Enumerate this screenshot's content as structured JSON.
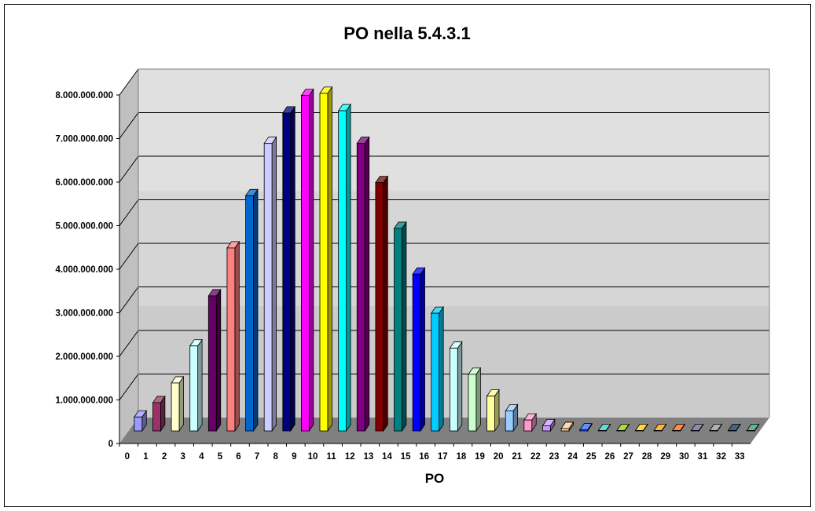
{
  "chart_data": {
    "type": "bar",
    "title": "PO nella 5.4.3.1",
    "xlabel": "PO",
    "ylabel": "",
    "ylim": [
      0,
      8000000000
    ],
    "y_tick_labels": [
      "0",
      "1.000.000.000",
      "2.000.000.000",
      "3.000.000.000",
      "4.000.000.000",
      "5.000.000.000",
      "6.000.000.000",
      "7.000.000.000",
      "8.000.000.000"
    ],
    "grid": true,
    "legend": "none",
    "style": "3d-column",
    "categories": [
      "0",
      "1",
      "2",
      "3",
      "4",
      "5",
      "6",
      "7",
      "8",
      "9",
      "10",
      "11",
      "12",
      "13",
      "14",
      "15",
      "16",
      "17",
      "18",
      "19",
      "20",
      "21",
      "22",
      "23",
      "24",
      "25",
      "26",
      "27",
      "28",
      "29",
      "30",
      "31",
      "32",
      "33"
    ],
    "values": [
      320000000,
      650000000,
      1100000000,
      1950000000,
      3100000000,
      4200000000,
      5400000000,
      6600000000,
      7300000000,
      7700000000,
      7750000000,
      7350000000,
      6600000000,
      5700000000,
      4650000000,
      3600000000,
      2700000000,
      1900000000,
      1300000000,
      800000000,
      460000000,
      250000000,
      120000000,
      55000000,
      25000000,
      10000000,
      5000000,
      2000000,
      1000000,
      500000,
      200000,
      100000,
      50000,
      20000
    ],
    "colors": [
      "#9999ff",
      "#993366",
      "#ffffcc",
      "#ccffff",
      "#660066",
      "#ff8080",
      "#0066cc",
      "#ccccff",
      "#000080",
      "#ff00ff",
      "#ffff00",
      "#00ffff",
      "#800080",
      "#800000",
      "#008080",
      "#0000ff",
      "#00ccff",
      "#ccffff",
      "#ccffcc",
      "#ffff99",
      "#99ccff",
      "#ff99cc",
      "#cc99ff",
      "#ffcc99",
      "#3366ff",
      "#33cccc",
      "#99cc00",
      "#ffcc00",
      "#ff9900",
      "#ff6600",
      "#666699",
      "#969696",
      "#003366",
      "#339966"
    ]
  }
}
